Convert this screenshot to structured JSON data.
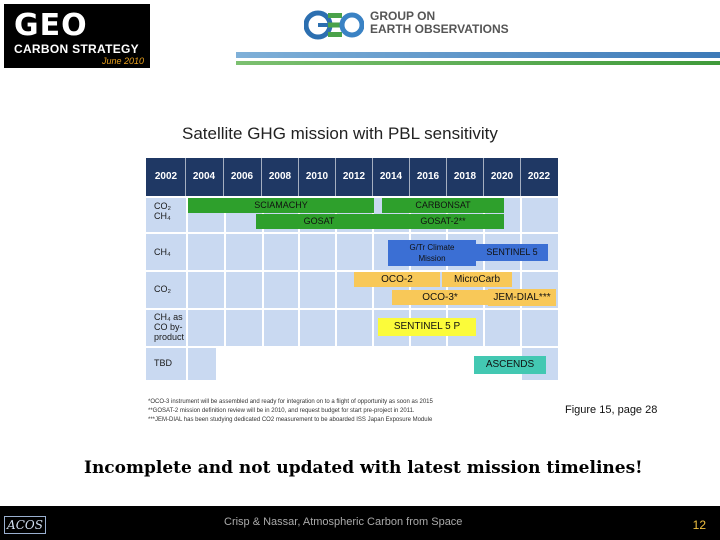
{
  "header": {
    "geo_title": "GEO",
    "geo_subtitle": "CARBON STRATEGY",
    "geo_date": "June 2010",
    "org_name_line1": "GROUP ON",
    "org_name_line2": "EARTH OBSERVATIONS"
  },
  "figure": {
    "title": "Satellite GHG mission with PBL sensitivity",
    "years": [
      "2002",
      "2004",
      "2006",
      "2008",
      "2010",
      "2012",
      "2014",
      "2016",
      "2018",
      "2020",
      "2022"
    ],
    "rows": [
      {
        "label_lines": [
          "CO₂",
          "CH₄"
        ]
      },
      {
        "label_lines": [
          "CH₄"
        ]
      },
      {
        "label_lines": [
          "CO₂"
        ]
      },
      {
        "label_lines": [
          "CH₄ as",
          "CO by-",
          "product"
        ]
      },
      {
        "label_lines": [
          "TBD"
        ]
      }
    ],
    "missions": [
      {
        "name": "SCIAMACHY"
      },
      {
        "name": "GOSAT"
      },
      {
        "name": "CARBONSAT"
      },
      {
        "name": "GOSAT-2**"
      },
      {
        "name": "G/Tr Climate Mission"
      },
      {
        "name": "SENTINEL 5"
      },
      {
        "name": "OCO-2"
      },
      {
        "name": "MicroCarb"
      },
      {
        "name": "OCO-3*"
      },
      {
        "name": "JEM-DIAL***"
      },
      {
        "name": "SENTINEL 5 P"
      },
      {
        "name": "ASCENDS"
      }
    ],
    "footnotes": [
      "*OCO-3 instrument will be assembled and ready for integration on to a flight of opportunity as soon as 2015",
      "**GOSAT-2 mission definition review will be in 2010, and request budget for start pre-project in 2011.",
      "***JEM-DIAL has been studying dedicated CO2 measurement to be aboarded ISS Japan Exposure Module"
    ],
    "caption": "Figure 15, page 28"
  },
  "comment": "Incomplete and not updated with latest mission timelines!",
  "footer": {
    "logo_text": "ACOS",
    "center_text": "Crisp & Nassar,  Atmospheric Carbon from Space",
    "page_number": "12"
  }
}
